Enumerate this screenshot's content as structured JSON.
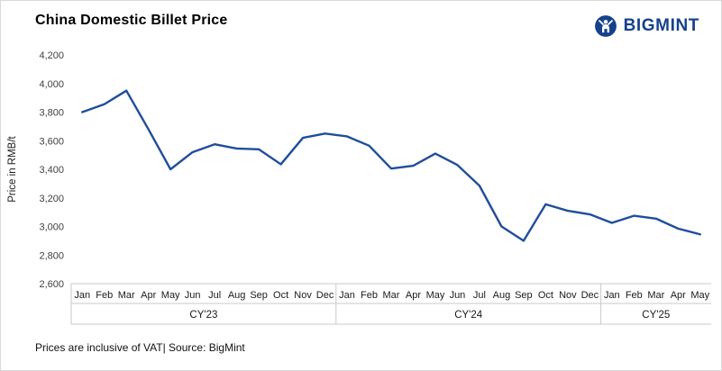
{
  "header": {
    "title": "China Domestic Billet Price",
    "brand_name": "BIGMINT"
  },
  "chart_data": {
    "type": "line",
    "title": "China Domestic Billet Price",
    "ylabel": "Price in RMB/t",
    "ylim": [
      2600,
      4200
    ],
    "ytick_step": 200,
    "grid": false,
    "legend_position": "none",
    "line_color": "#1F4E9C",
    "groups": [
      {
        "label": "CY'23",
        "months": [
          "Jan",
          "Feb",
          "Mar",
          "Apr",
          "May",
          "Jun",
          "Jul",
          "Aug",
          "Sep",
          "Oct",
          "Nov",
          "Dec"
        ],
        "values": [
          3800,
          3855,
          3950,
          3680,
          3400,
          3520,
          3575,
          3545,
          3540,
          3435,
          3620,
          3650
        ]
      },
      {
        "label": "CY'24",
        "months": [
          "Jan",
          "Feb",
          "Mar",
          "Apr",
          "May",
          "Jun",
          "Jul",
          "Aug",
          "Sep",
          "Oct",
          "Nov",
          "Dec"
        ],
        "values": [
          3630,
          3565,
          3405,
          3425,
          3510,
          3430,
          3285,
          3000,
          2900,
          3155,
          3110,
          3085
        ]
      },
      {
        "label": "CY'25",
        "months": [
          "Jan",
          "Feb",
          "Mar",
          "Apr",
          "May"
        ],
        "values": [
          3025,
          3075,
          3055,
          2985,
          2945
        ]
      }
    ]
  },
  "footer": {
    "note": "Prices are inclusive of VAT| Source: BigMint"
  }
}
